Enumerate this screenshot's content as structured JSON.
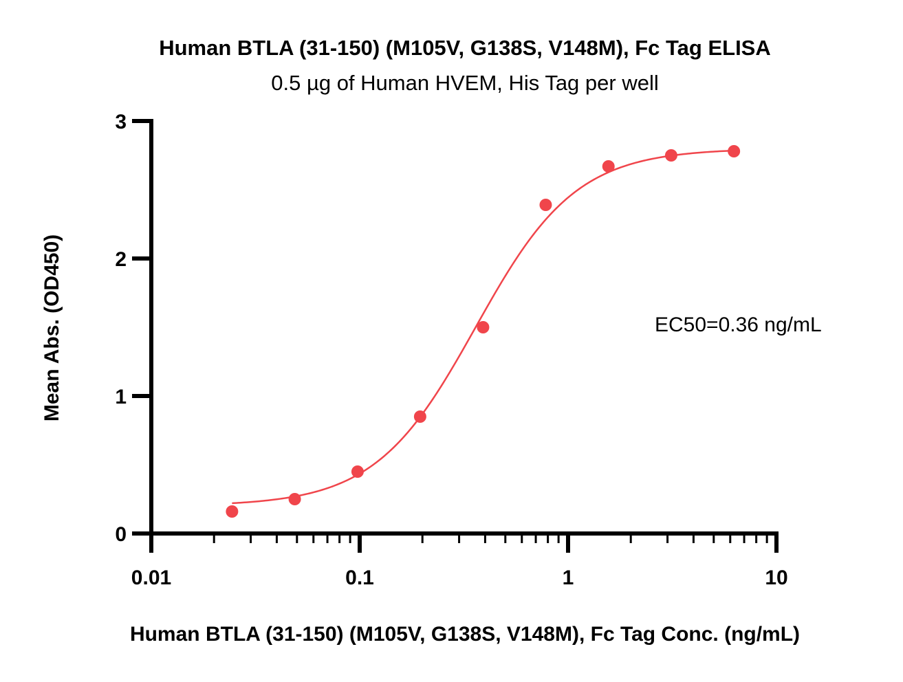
{
  "chart_data": {
    "type": "scatter",
    "title": "Human BTLA (31-150) (M105V, G138S, V148M), Fc Tag ELISA",
    "subtitle": "0.5 µg of Human HVEM, His Tag per well",
    "xlabel": "Human BTLA (31-150) (M105V, G138S, V148M), Fc Tag Conc. (ng/mL)",
    "ylabel": "Mean Abs. (OD450)",
    "xscale": "log",
    "xlim": [
      0.01,
      10
    ],
    "ylim": [
      0,
      3
    ],
    "x_ticks": [
      0.01,
      0.1,
      1,
      10
    ],
    "x_tick_labels": [
      "0.01",
      "0.1",
      "1",
      "10"
    ],
    "y_ticks": [
      0,
      1,
      2,
      3
    ],
    "y_tick_labels": [
      "0",
      "1",
      "2",
      "3"
    ],
    "grid": false,
    "legend": "none",
    "annotation": "EC50=0.36 ng/mL",
    "color": "#f0454b",
    "series": [
      {
        "x": [
          0.0244,
          0.0488,
          0.0977,
          0.195,
          0.391,
          0.781,
          1.5625,
          3.125,
          6.25
        ],
        "y": [
          0.16,
          0.25,
          0.45,
          0.85,
          1.5,
          2.39,
          2.67,
          2.75,
          2.78
        ]
      }
    ],
    "fit": {
      "model": "4PL",
      "bottom": 0.2,
      "top": 2.8,
      "ec50": 0.36,
      "hill": 1.8,
      "x_range": [
        0.0244,
        6.25
      ]
    }
  }
}
